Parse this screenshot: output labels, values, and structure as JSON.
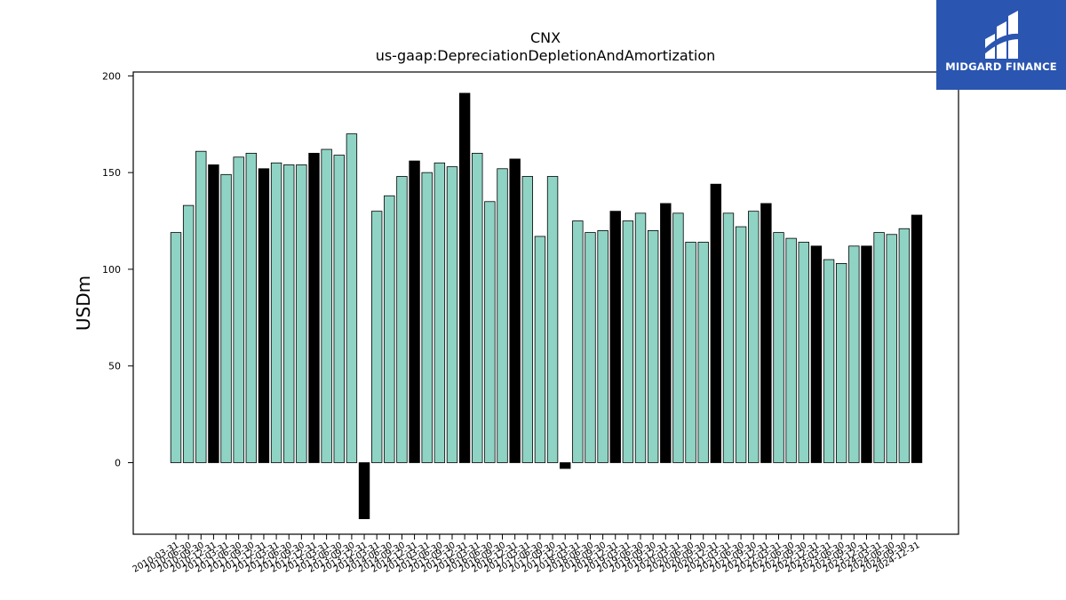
{
  "logo": {
    "text": "MIDGARD FINANCE",
    "background": "#2a55b0"
  },
  "chart_data": {
    "type": "bar",
    "title": "CNX",
    "subtitle": "us-gaap:DepreciationDepletionAndAmortization",
    "xlabel": "",
    "ylabel": "USDm",
    "ylim": [
      -37,
      202
    ],
    "yticks": [
      0,
      50,
      100,
      150,
      200
    ],
    "grid": false,
    "colors": {
      "quarter": "#8fd3c4",
      "annual": "#000000",
      "edge": "#000000"
    },
    "categories": [
      "2010-03-31",
      "2010-06-30",
      "2010-09-30",
      "2010-12-31",
      "2011-03-31",
      "2011-06-30",
      "2011-09-30",
      "2011-12-31",
      "2012-03-31",
      "2012-06-30",
      "2012-09-30",
      "2012-12-31",
      "2013-03-31",
      "2013-06-30",
      "2013-09-30",
      "2013-12-31",
      "2014-03-31",
      "2014-06-30",
      "2014-09-30",
      "2014-12-31",
      "2015-03-31",
      "2015-06-30",
      "2015-09-30",
      "2015-12-31",
      "2016-03-31",
      "2016-06-30",
      "2016-09-30",
      "2016-12-31",
      "2017-03-31",
      "2017-06-30",
      "2017-09-30",
      "2017-12-31",
      "2018-03-31",
      "2018-06-30",
      "2018-09-30",
      "2018-12-31",
      "2019-03-31",
      "2019-06-30",
      "2019-09-30",
      "2019-12-31",
      "2020-03-31",
      "2020-06-30",
      "2020-09-30",
      "2020-12-31",
      "2021-03-31",
      "2021-06-30",
      "2021-09-30",
      "2021-12-31",
      "2022-03-31",
      "2022-06-30",
      "2022-09-30",
      "2022-12-31",
      "2023-03-31",
      "2023-06-30",
      "2023-09-30",
      "2023-12-31",
      "2024-03-31",
      "2024-06-30",
      "2024-09-30",
      "2024-12-31"
    ],
    "values": [
      119,
      133,
      161,
      154,
      149,
      158,
      160,
      152,
      155,
      154,
      154,
      160,
      162,
      159,
      170,
      -29,
      130,
      138,
      148,
      156,
      150,
      155,
      153,
      191,
      160,
      135,
      152,
      157,
      148,
      117,
      148,
      -3,
      125,
      119,
      120,
      130,
      125,
      129,
      120,
      134,
      129,
      114,
      114,
      144,
      129,
      122,
      130,
      134,
      119,
      116,
      114,
      112,
      105,
      103,
      112,
      112,
      119,
      118,
      121,
      128
    ],
    "annual": [
      false,
      false,
      false,
      true,
      false,
      false,
      false,
      true,
      false,
      false,
      false,
      true,
      false,
      false,
      false,
      true,
      false,
      false,
      false,
      true,
      false,
      false,
      false,
      true,
      false,
      false,
      false,
      true,
      false,
      false,
      false,
      true,
      false,
      false,
      false,
      true,
      false,
      false,
      false,
      true,
      false,
      false,
      false,
      true,
      false,
      false,
      false,
      true,
      false,
      false,
      false,
      true,
      false,
      false,
      false,
      true,
      false,
      false,
      false,
      true
    ]
  }
}
